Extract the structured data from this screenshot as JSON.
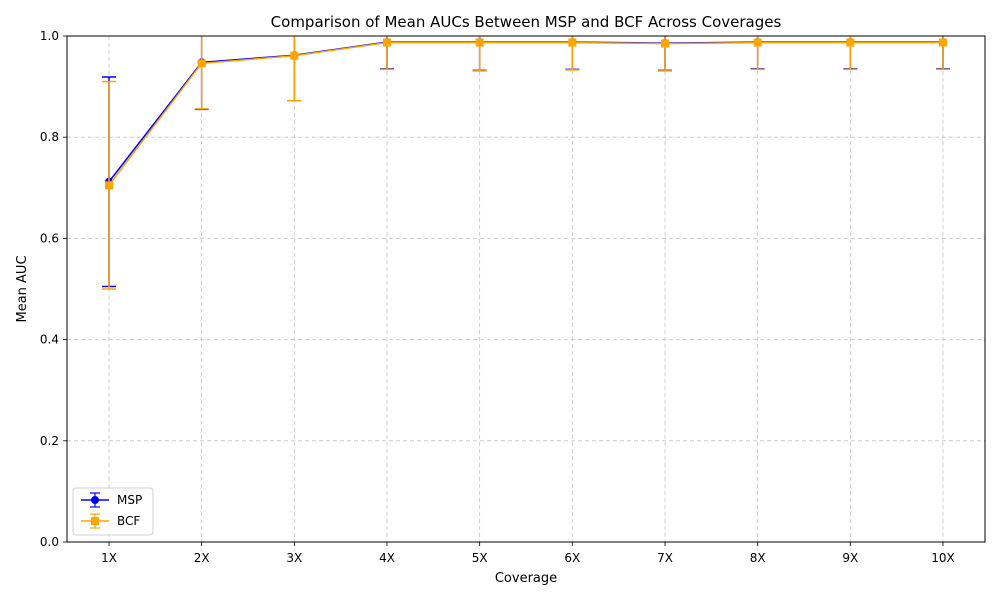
{
  "chart_data": {
    "type": "line",
    "title": "Comparison of Mean AUCs Between MSP and BCF Across Coverages",
    "xlabel": "Coverage",
    "ylabel": "Mean AUC",
    "categories": [
      "1X",
      "2X",
      "3X",
      "4X",
      "5X",
      "6X",
      "7X",
      "8X",
      "9X",
      "10X"
    ],
    "ylim": [
      0.0,
      1.0
    ],
    "yticks": [
      "0.0",
      "0.2",
      "0.4",
      "0.6",
      "0.8",
      "1.0"
    ],
    "grid": true,
    "legend_position": "lower-left",
    "series": [
      {
        "name": "MSP",
        "color": "#0000ff",
        "marker": "circle",
        "values": [
          0.712,
          0.948,
          0.962,
          0.988,
          0.988,
          0.988,
          0.986,
          0.988,
          0.988,
          0.988
        ],
        "err_low": [
          0.505,
          0.855,
          0.872,
          0.935,
          0.932,
          0.934,
          0.932,
          0.935,
          0.935,
          0.935
        ],
        "err_high": [
          0.919,
          1.041,
          1.052,
          1.041,
          1.044,
          1.042,
          1.04,
          1.041,
          1.041,
          1.041
        ]
      },
      {
        "name": "BCF",
        "color": "#ffa500",
        "marker": "square",
        "values": [
          0.705,
          0.946,
          0.961,
          0.987,
          0.987,
          0.987,
          0.985,
          0.987,
          0.987,
          0.987
        ],
        "err_low": [
          0.5,
          0.856,
          0.872,
          0.934,
          0.931,
          0.933,
          0.931,
          0.934,
          0.934,
          0.934
        ],
        "err_high": [
          0.91,
          1.036,
          1.05,
          1.04,
          1.043,
          1.041,
          1.039,
          1.04,
          1.04,
          1.04
        ]
      }
    ]
  }
}
